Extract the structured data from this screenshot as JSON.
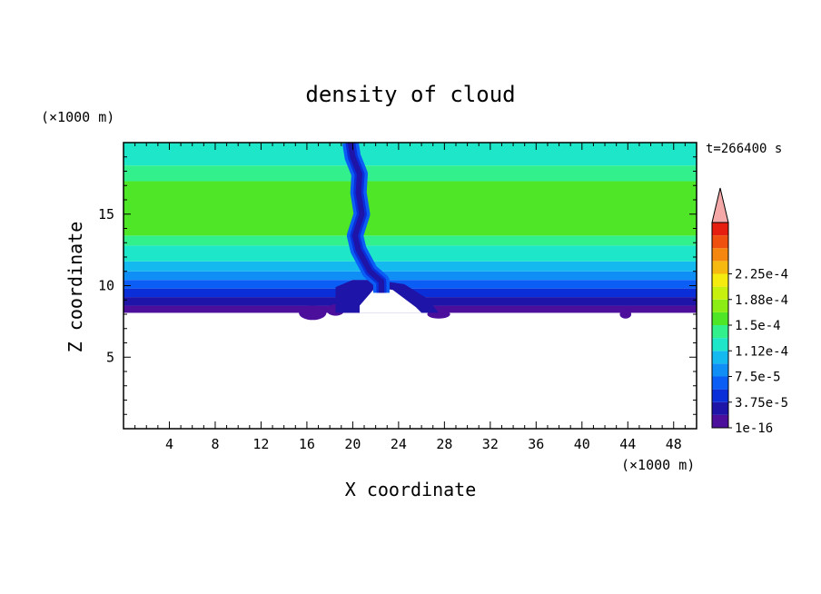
{
  "chart_data": {
    "type": "heatmap",
    "title": "density of cloud",
    "xlabel": "X coordinate",
    "ylabel": "Z coordinate",
    "x_unit": "(×1000 m)",
    "y_unit": "(×1000 m)",
    "time_label": "t=266400 s",
    "xlim": [
      0,
      50
    ],
    "ylim": [
      0,
      20
    ],
    "x_ticks": [
      4,
      8,
      12,
      16,
      20,
      24,
      28,
      32,
      36,
      40,
      44,
      48
    ],
    "y_ticks": [
      5,
      10,
      15
    ],
    "colorbar": {
      "labels": [
        "1e-16",
        "3.75e-5",
        "7.5e-5",
        "1.12e-4",
        "1.5e-4",
        "1.88e-4",
        "2.25e-4"
      ],
      "level_colors": [
        "#4b0f9c",
        "#1e14a8",
        "#0a2ed8",
        "#0a5ef5",
        "#0f8ff5",
        "#14b9f0",
        "#1ee6c8",
        "#32f08c",
        "#50e628",
        "#8ced14",
        "#c8f00f",
        "#f5eb0f",
        "#f5b90f",
        "#f5870f",
        "#f0500f",
        "#e61e0f"
      ],
      "extend_color": "#f5a8a8"
    },
    "layers": [
      {
        "z_bottom": 8.1,
        "z_top": 8.6,
        "level": 0
      },
      {
        "z_bottom": 8.6,
        "z_top": 9.2,
        "level": 1
      },
      {
        "z_bottom": 9.2,
        "z_top": 9.8,
        "level": 2
      },
      {
        "z_bottom": 9.8,
        "z_top": 10.4,
        "level": 3
      },
      {
        "z_bottom": 10.4,
        "z_top": 11.0,
        "level": 4
      },
      {
        "z_bottom": 11.0,
        "z_top": 11.7,
        "level": 5
      },
      {
        "z_bottom": 11.7,
        "z_top": 12.8,
        "level": 6
      },
      {
        "z_bottom": 12.8,
        "z_top": 13.5,
        "level": 7
      },
      {
        "z_bottom": 13.5,
        "z_top": 17.3,
        "level": 8
      },
      {
        "z_bottom": 17.3,
        "z_top": 18.4,
        "level": 7
      },
      {
        "z_bottom": 18.4,
        "z_top": 20.0,
        "level": 6
      }
    ],
    "plume_center_x": [
      22.5,
      22.5,
      21.5,
      20.5,
      20.2,
      20.8,
      20.5,
      20.6,
      20.0,
      19.8
    ],
    "plume_center_z": [
      9.5,
      10.3,
      11.0,
      12.5,
      13.5,
      15.0,
      16.5,
      17.8,
      19.0,
      20.0
    ]
  }
}
